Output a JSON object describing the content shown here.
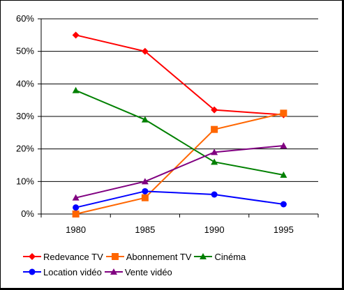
{
  "chart_data": {
    "type": "line",
    "x": [
      "1980",
      "1985",
      "1990",
      "1995"
    ],
    "ylim": [
      0,
      60
    ],
    "yticks": [
      "0%",
      "10%",
      "20%",
      "30%",
      "40%",
      "50%",
      "60%"
    ],
    "grid": true,
    "legend_position": "bottom",
    "series": [
      {
        "name": "Redevance TV",
        "values": [
          55,
          50,
          32,
          30.5
        ],
        "color": "#ff0000",
        "marker": "diamond"
      },
      {
        "name": "Abonnement TV",
        "values": [
          0,
          5,
          26,
          31
        ],
        "color": "#ff6600",
        "marker": "square"
      },
      {
        "name": "Cinéma",
        "values": [
          38,
          29,
          16,
          12
        ],
        "color": "#008000",
        "marker": "triangle"
      },
      {
        "name": "Location vidéo",
        "values": [
          2,
          7,
          6,
          3
        ],
        "color": "#0000ff",
        "marker": "circle"
      },
      {
        "name": "Vente vidéo",
        "values": [
          5,
          10,
          19,
          21
        ],
        "color": "#800080",
        "marker": "triangle"
      }
    ]
  }
}
